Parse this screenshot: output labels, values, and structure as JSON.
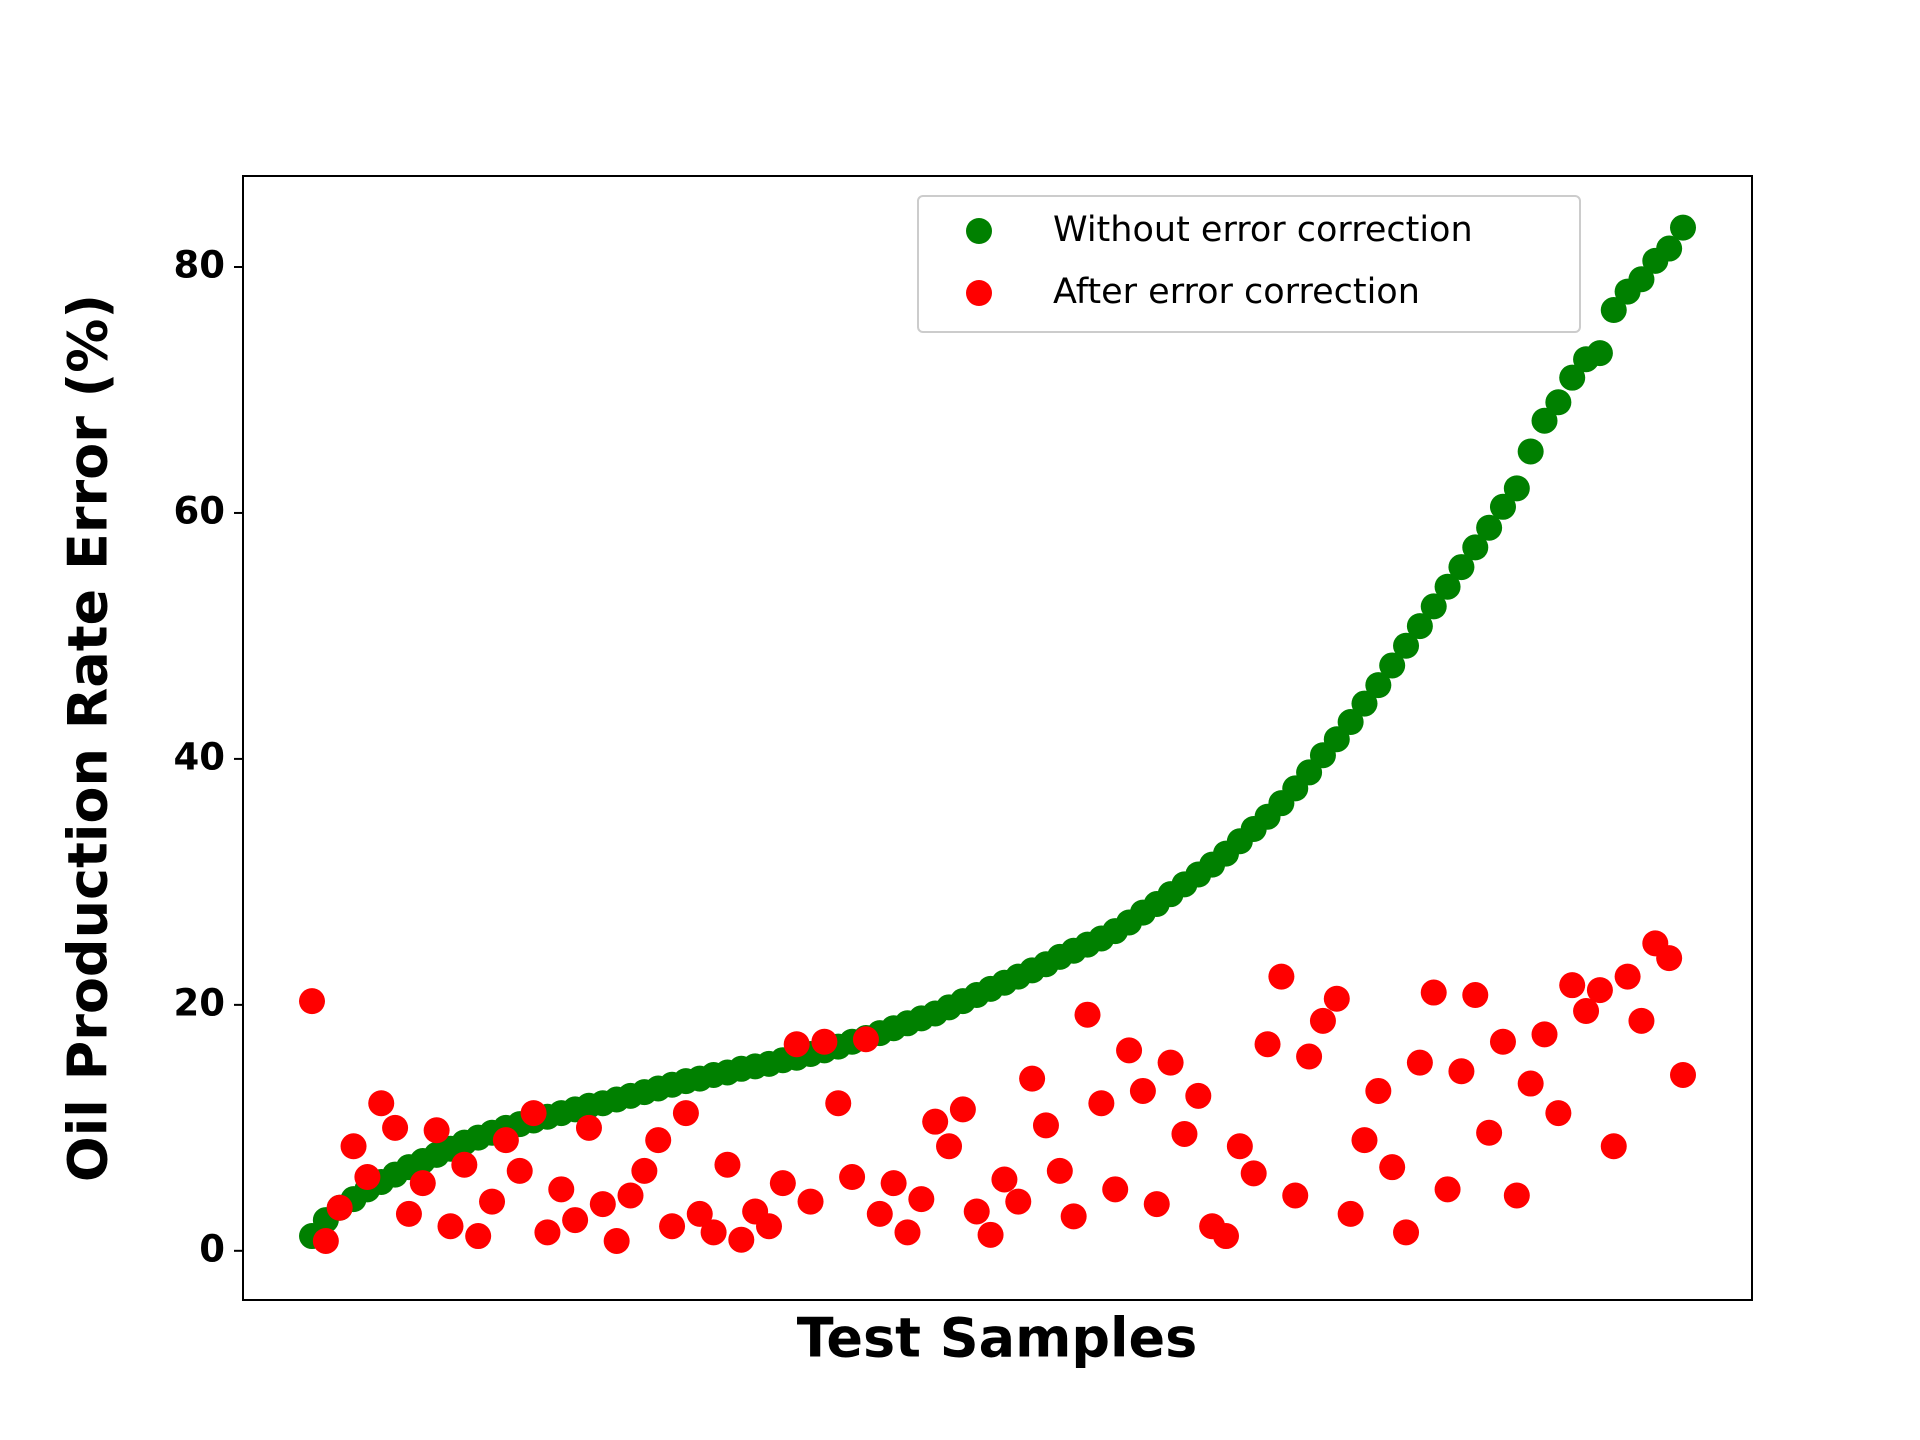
{
  "chart_data": {
    "type": "scatter",
    "xlabel": "Test Samples",
    "ylabel": "Oil Production Rate Error (%)",
    "ylim": [
      -4,
      87.4
    ],
    "yticks": [
      0,
      20,
      40,
      60,
      80
    ],
    "legend": "upper right",
    "series": [
      {
        "name": "Without error correction",
        "color": "#008000",
        "values": [
          1.2,
          2.5,
          3.5,
          4.2,
          5,
          5.6,
          6.2,
          6.8,
          7.3,
          7.8,
          8.3,
          8.8,
          9.2,
          9.6,
          10,
          10.3,
          10.6,
          10.9,
          11.2,
          11.5,
          11.8,
          12,
          12.3,
          12.6,
          12.9,
          13.2,
          13.5,
          13.8,
          14,
          14.3,
          14.5,
          14.8,
          15,
          15.2,
          15.5,
          15.7,
          16,
          16.3,
          16.6,
          17,
          17.3,
          17.7,
          18.1,
          18.5,
          18.9,
          19.3,
          19.8,
          20.3,
          20.8,
          21.3,
          21.8,
          22.3,
          22.8,
          23.3,
          23.9,
          24.4,
          24.9,
          25.4,
          26,
          26.7,
          27.5,
          28.2,
          29,
          29.8,
          30.6,
          31.4,
          32.3,
          33.3,
          34.3,
          35.3,
          36.4,
          37.6,
          38.9,
          40.3,
          41.6,
          43,
          44.5,
          46,
          47.6,
          49.2,
          50.8,
          52.4,
          54,
          55.6,
          57.2,
          58.8,
          60.5,
          62,
          65,
          67.5,
          69,
          71,
          72.5,
          73,
          76.5,
          78,
          79,
          80.5,
          81.5,
          83.2
        ]
      },
      {
        "name": "After error correction",
        "color": "#ff0000",
        "values": [
          20.3,
          0.8,
          3.5,
          8.5,
          6,
          12,
          10,
          3,
          5.5,
          9.8,
          2,
          7,
          1.2,
          4,
          9,
          6.5,
          11.2,
          1.5,
          5,
          2.5,
          10,
          3.8,
          0.8,
          4.5,
          6.5,
          9,
          2,
          11.2,
          3,
          1.5,
          7,
          0.9,
          3.2,
          2,
          5.5,
          16.8,
          4,
          17,
          12,
          6,
          17.2,
          3,
          5.5,
          1.5,
          4.2,
          10.5,
          8.5,
          11.5,
          3.2,
          1.3,
          5.8,
          4,
          14,
          10.2,
          6.5,
          2.8,
          19.2,
          12,
          5,
          16.3,
          13,
          3.8,
          15.3,
          9.5,
          12.6,
          2,
          1.2,
          8.5,
          6.3,
          16.8,
          22.3,
          4.5,
          15.8,
          18.7,
          20.5,
          3,
          9,
          13,
          6.8,
          1.5,
          15.3,
          21,
          5,
          14.6,
          20.8,
          9.6,
          17,
          4.5,
          13.6,
          17.6,
          11.2,
          21.6,
          19.5,
          21.2,
          8.5,
          22.3,
          18.7,
          25,
          23.8,
          14.3
        ]
      }
    ]
  }
}
